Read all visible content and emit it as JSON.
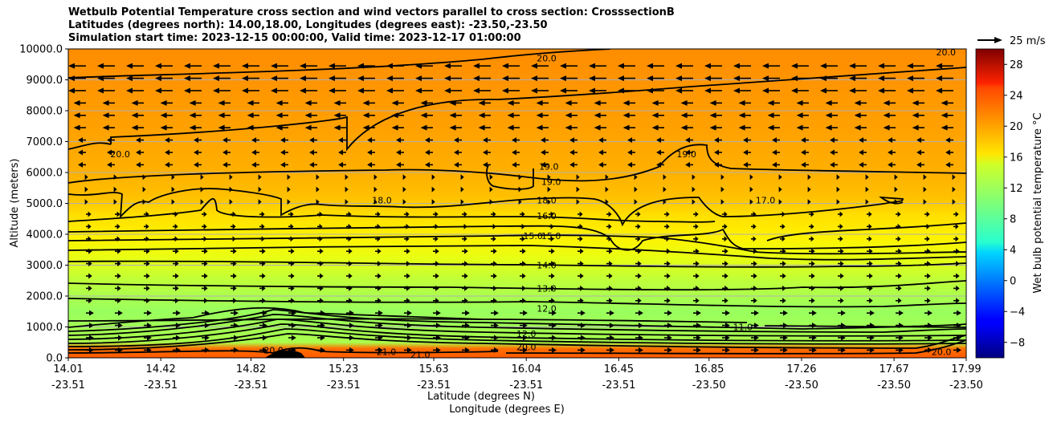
{
  "chart_data": {
    "type": "heatmap",
    "title_lines": [
      "Wetbulb Potential Temperature cross section and wind vectors parallel to cross section: CrosssectionB",
      "Latitudes (degrees north): 14.00,18.00, Longitudes (degrees east): -23.50,-23.50",
      "Simulation start time: 2023-12-15 00:00:00, Valid time: 2023-12-17 01:00:00"
    ],
    "xlabel_lat": "Latitude (degrees N)",
    "xlabel_lon": "Longitude (degrees E)",
    "ylabel": "Altitude (meters)",
    "xlim": [
      14.01,
      17.99
    ],
    "ylim": [
      0,
      10000
    ],
    "x_ticks": [
      {
        "lat": "14.01",
        "lon": "-23.51",
        "v": 14.01
      },
      {
        "lat": "14.42",
        "lon": "-23.51",
        "v": 14.42
      },
      {
        "lat": "14.82",
        "lon": "-23.51",
        "v": 14.82
      },
      {
        "lat": "15.23",
        "lon": "-23.51",
        "v": 15.23
      },
      {
        "lat": "15.63",
        "lon": "-23.51",
        "v": 15.63
      },
      {
        "lat": "16.04",
        "lon": "-23.51",
        "v": 16.04
      },
      {
        "lat": "16.45",
        "lon": "-23.51",
        "v": 16.45
      },
      {
        "lat": "16.85",
        "lon": "-23.50",
        "v": 16.85
      },
      {
        "lat": "17.26",
        "lon": "-23.50",
        "v": 17.26
      },
      {
        "lat": "17.67",
        "lon": "-23.50",
        "v": 17.67
      },
      {
        "lat": "17.99",
        "lon": "-23.50",
        "v": 17.99
      }
    ],
    "y_ticks": [
      "0.0",
      "1000.0",
      "2000.0",
      "3000.0",
      "4000.0",
      "5000.0",
      "6000.0",
      "7000.0",
      "8000.0",
      "9000.0",
      "10000.0"
    ],
    "y_tick_values": [
      0,
      1000,
      2000,
      3000,
      4000,
      5000,
      6000,
      7000,
      8000,
      9000,
      10000
    ],
    "grid": true,
    "colorbar": {
      "label": "Wet bulb potential temperature $^\\circ$C",
      "label_text": "Wet bulb potential temperature °C",
      "range": [
        -10,
        30
      ],
      "ticks": [
        "−8",
        "−4",
        "0",
        "4",
        "8",
        "12",
        "16",
        "20",
        "24",
        "28"
      ],
      "tick_values": [
        -8,
        -4,
        0,
        4,
        8,
        12,
        16,
        20,
        24,
        28
      ],
      "colormap": "jet"
    },
    "quiver_key": {
      "label": "25 m/s",
      "speed": 25
    },
    "contour_labels": [
      {
        "text": "20.0",
        "lat": 16.13,
        "alt": 9700
      },
      {
        "text": "20.0",
        "lat": 17.9,
        "alt": 9900
      },
      {
        "text": "20.0",
        "lat": 14.24,
        "alt": 6600
      },
      {
        "text": "19.0",
        "lat": 16.14,
        "alt": 6200
      },
      {
        "text": "19.0",
        "lat": 16.15,
        "alt": 5700
      },
      {
        "text": "19.0",
        "lat": 16.75,
        "alt": 6600
      },
      {
        "text": "18.0",
        "lat": 15.4,
        "alt": 5100
      },
      {
        "text": "18.0",
        "lat": 16.13,
        "alt": 5100
      },
      {
        "text": "17.0",
        "lat": 17.1,
        "alt": 5100
      },
      {
        "text": "16.0",
        "lat": 16.13,
        "alt": 4600
      },
      {
        "text": "15.0",
        "lat": 16.07,
        "alt": 3950
      },
      {
        "text": "15.0",
        "lat": 16.15,
        "alt": 3950
      },
      {
        "text": "14.0",
        "lat": 16.13,
        "alt": 3000
      },
      {
        "text": "13.0",
        "lat": 16.13,
        "alt": 2250
      },
      {
        "text": "12.0",
        "lat": 16.13,
        "alt": 1600
      },
      {
        "text": "11.0",
        "lat": 17.0,
        "alt": 1000
      },
      {
        "text": "12.0",
        "lat": 16.04,
        "alt": 780
      },
      {
        "text": "20.0",
        "lat": 16.04,
        "alt": 350
      },
      {
        "text": "20.0",
        "lat": 14.92,
        "alt": 250
      },
      {
        "text": "21.0",
        "lat": 15.42,
        "alt": 200
      },
      {
        "text": "21.0",
        "lat": 15.57,
        "alt": 100
      },
      {
        "text": "20.0",
        "lat": 17.88,
        "alt": 200
      }
    ],
    "colors": {
      "text": "#000000",
      "grid": "#b0b0b0",
      "contour": "#000000",
      "terrain": "#000000"
    }
  }
}
